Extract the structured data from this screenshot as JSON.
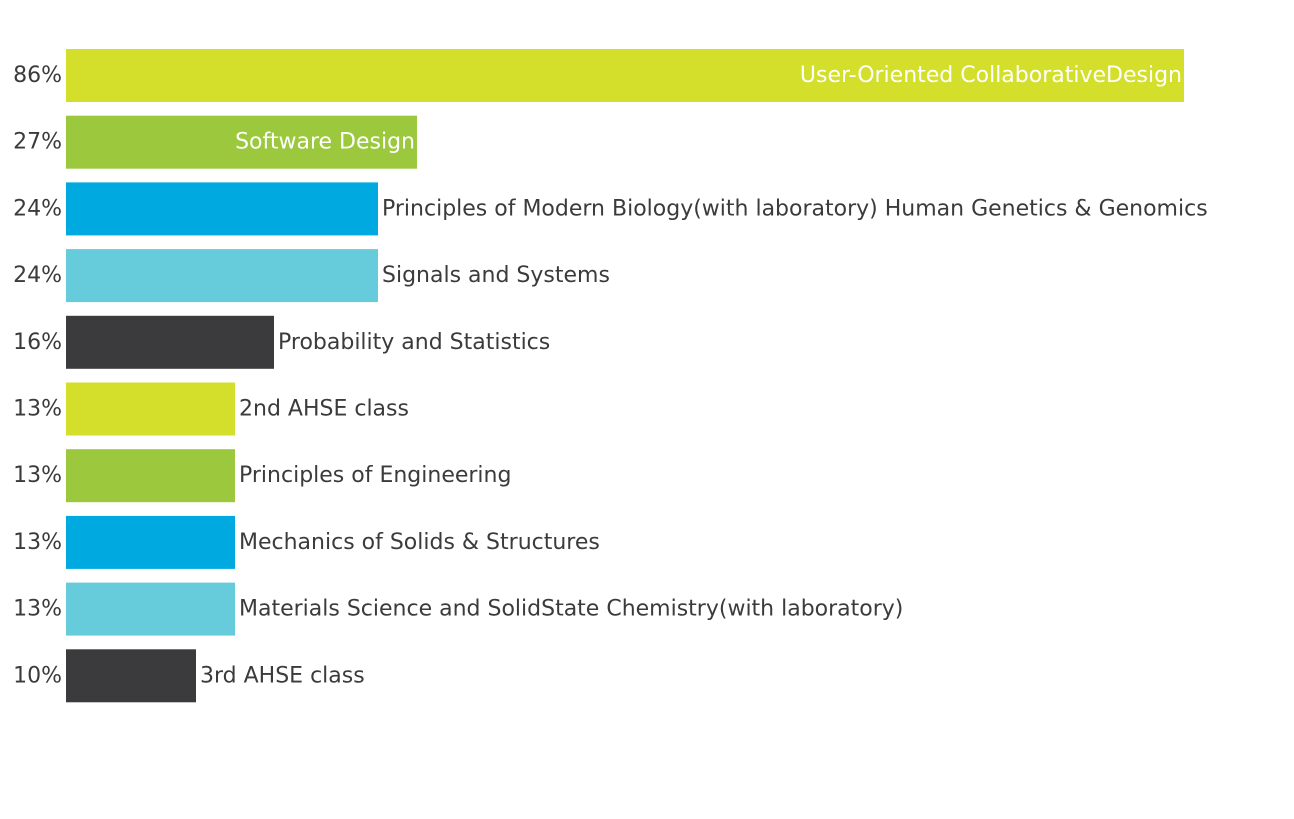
{
  "chart_data": {
    "type": "bar",
    "orientation": "horizontal",
    "grid": false,
    "legend": "none",
    "value_format": "percent",
    "categories": [
      "User-Oriented CollaborativeDesign",
      "Software Design",
      "Principles of Modern Biology(with laboratory) Human Genetics & Genomics",
      "Signals and Systems",
      "Probability and Statistics",
      "2nd AHSE class",
      "Principles of Engineering",
      "Mechanics of Solids & Structures",
      "Materials Science and SolidState Chemistry(with laboratory)",
      "3rd AHSE class"
    ],
    "values": [
      86,
      27,
      24,
      24,
      16,
      13,
      13,
      13,
      13,
      10
    ],
    "value_labels": [
      "86%",
      "27%",
      "24%",
      "24%",
      "16%",
      "13%",
      "13%",
      "13%",
      "13%",
      "10%"
    ],
    "xlim": [
      0,
      86
    ],
    "colors": [
      "#d3df2a",
      "#9bc83d",
      "#00a9e0",
      "#66ccdc",
      "#3b3b3d",
      "#d3df2a",
      "#9bc83d",
      "#00a9e0",
      "#66ccdc",
      "#3b3b3d"
    ],
    "label_color_dark": "#3b3b3d",
    "label_color_light": "#ffffff"
  }
}
